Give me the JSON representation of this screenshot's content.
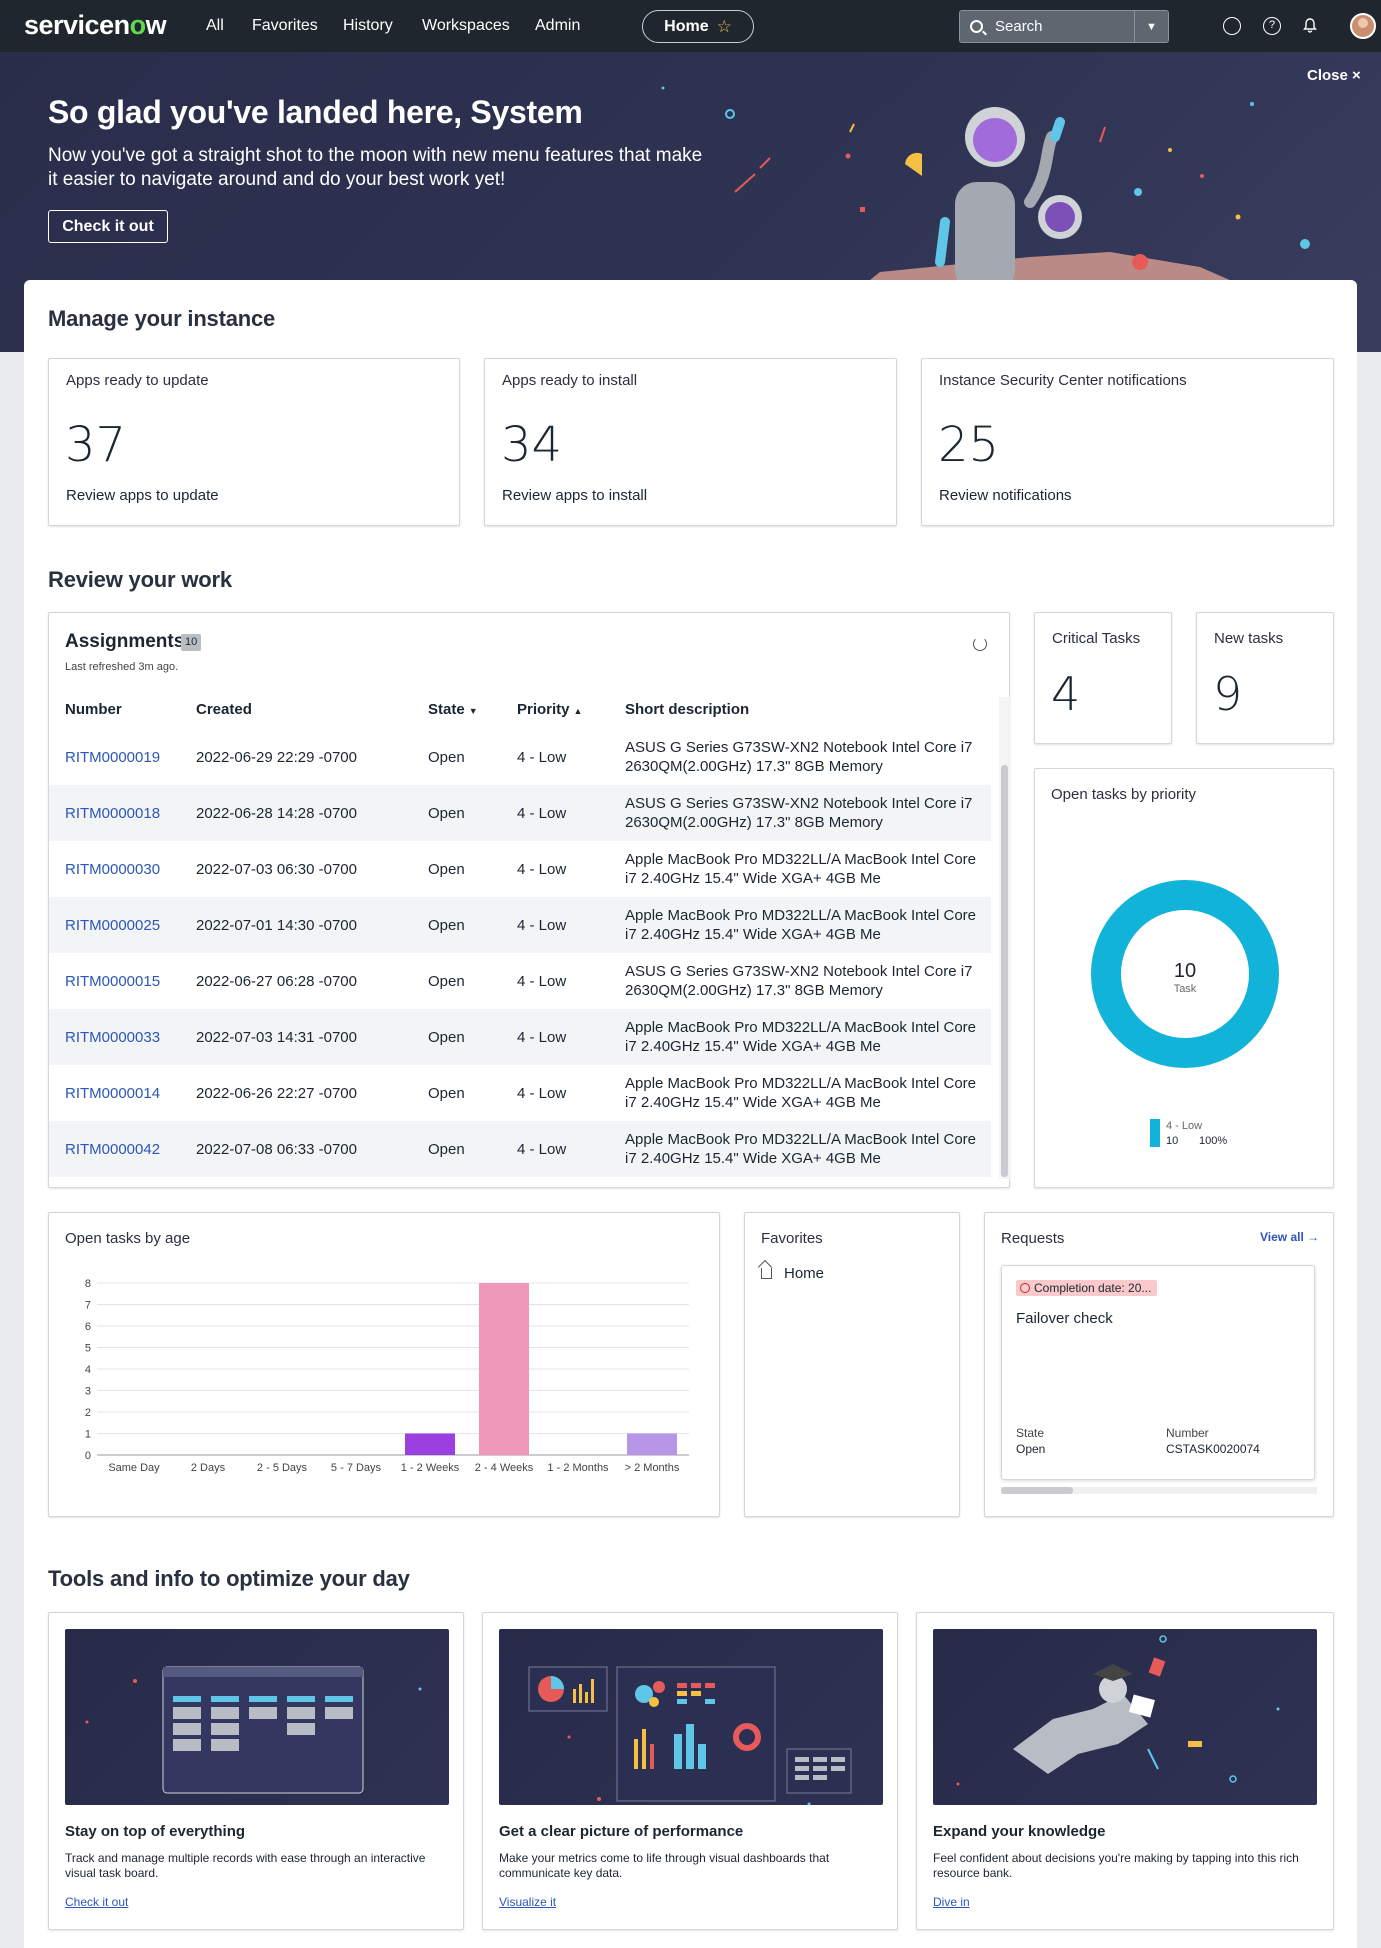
{
  "nav": {
    "logo": "servicenow",
    "links": [
      "All",
      "Favorites",
      "History",
      "Workspaces",
      "Admin"
    ],
    "home_label": "Home",
    "search_placeholder": "Search"
  },
  "banner": {
    "title": "So glad you've landed here, System",
    "text": "Now you've got a straight shot to the moon with new menu features that make it easier to navigate around and do your best work yet!",
    "button": "Check it out",
    "close": "Close ×"
  },
  "manage": {
    "heading": "Manage your instance",
    "cards": [
      {
        "title": "Apps ready to update",
        "value": "37",
        "link": "Review apps to update"
      },
      {
        "title": "Apps ready to install",
        "value": "34",
        "link": "Review apps to install"
      },
      {
        "title": "Instance Security Center notifications",
        "value": "25",
        "link": "Review notifications"
      }
    ]
  },
  "review": {
    "heading": "Review your work",
    "assignments": {
      "title": "Assignments",
      "count": "10",
      "refreshed": "Last refreshed 3m ago.",
      "columns": [
        "Number",
        "Created",
        "State",
        "Priority",
        "Short description"
      ],
      "rows": [
        {
          "number": "RITM0000019",
          "created": "2022-06-29 22:29 -0700",
          "state": "Open",
          "priority": "4 - Low",
          "desc": "ASUS G Series G73SW-XN2 Notebook Intel Core i7 2630QM(2.00GHz) 17.3\" 8GB Memory"
        },
        {
          "number": "RITM0000018",
          "created": "2022-06-28 14:28 -0700",
          "state": "Open",
          "priority": "4 - Low",
          "desc": "ASUS G Series G73SW-XN2 Notebook Intel Core i7 2630QM(2.00GHz) 17.3\" 8GB Memory"
        },
        {
          "number": "RITM0000030",
          "created": "2022-07-03 06:30 -0700",
          "state": "Open",
          "priority": "4 - Low",
          "desc": "Apple MacBook Pro MD322LL/A MacBook Intel Core i7 2.40GHz 15.4\" Wide XGA+ 4GB Me"
        },
        {
          "number": "RITM0000025",
          "created": "2022-07-01 14:30 -0700",
          "state": "Open",
          "priority": "4 - Low",
          "desc": "Apple MacBook Pro MD322LL/A MacBook Intel Core i7 2.40GHz 15.4\" Wide XGA+ 4GB Me"
        },
        {
          "number": "RITM0000015",
          "created": "2022-06-27 06:28 -0700",
          "state": "Open",
          "priority": "4 - Low",
          "desc": "ASUS G Series G73SW-XN2 Notebook Intel Core i7 2630QM(2.00GHz) 17.3\" 8GB Memory"
        },
        {
          "number": "RITM0000033",
          "created": "2022-07-03 14:31 -0700",
          "state": "Open",
          "priority": "4 - Low",
          "desc": "Apple MacBook Pro MD322LL/A MacBook Intel Core i7 2.40GHz 15.4\" Wide XGA+ 4GB Me"
        },
        {
          "number": "RITM0000014",
          "created": "2022-06-26 22:27 -0700",
          "state": "Open",
          "priority": "4 - Low",
          "desc": "Apple MacBook Pro MD322LL/A MacBook Intel Core i7 2.40GHz 15.4\" Wide XGA+ 4GB Me"
        },
        {
          "number": "RITM0000042",
          "created": "2022-07-08 06:33 -0700",
          "state": "Open",
          "priority": "4 - Low",
          "desc": "Apple MacBook Pro MD322LL/A MacBook Intel Core i7 2.40GHz 15.4\" Wide XGA+ 4GB Me"
        }
      ]
    },
    "critical": {
      "title": "Critical Tasks",
      "value": "4"
    },
    "newtasks": {
      "title": "New tasks",
      "value": "9"
    },
    "openprio": {
      "title": "Open tasks by priority",
      "center_value": "10",
      "center_label": "Task",
      "legend_label": "4 - Low",
      "legend_value": "10",
      "legend_pct": "100%",
      "color": "#12b3d8"
    },
    "age": {
      "title": "Open tasks by age"
    },
    "favorites": {
      "title": "Favorites",
      "item": "Home"
    },
    "requests": {
      "title": "Requests",
      "view_all": "View all →",
      "card": {
        "due": "Completion date: 20...",
        "title": "Failover check",
        "state_label": "State",
        "state": "Open",
        "number_label": "Number",
        "number": "CSTASK0020074"
      }
    }
  },
  "chart_data": {
    "type": "bar",
    "title": "Open tasks by age",
    "categories": [
      "Same Day",
      "2 Days",
      "2 - 5 Days",
      "5 - 7 Days",
      "1 - 2 Weeks",
      "2 - 4 Weeks",
      "1 - 2 Months",
      "> 2 Months"
    ],
    "values": [
      0,
      0,
      0,
      0,
      1,
      8,
      0,
      1
    ],
    "colors": [
      "#c96ad1",
      "#c96ad1",
      "#c96ad1",
      "#c96ad1",
      "#9b3fe0",
      "#ef97b6",
      "#c96ad1",
      "#b796e8"
    ],
    "ylim": [
      0,
      8
    ],
    "yticks": [
      "0",
      "1",
      "2",
      "3",
      "4",
      "5",
      "6",
      "7",
      "8"
    ],
    "grid": true
  },
  "tools": {
    "heading": "Tools and info to optimize your day",
    "cards": [
      {
        "title": "Stay on top of everything",
        "desc": "Track and manage multiple records with ease through an interactive visual task board.",
        "link": "Check it out"
      },
      {
        "title": "Get a clear picture of performance",
        "desc": "Make your metrics come to life through visual dashboards that communicate key data.",
        "link": "Visualize it"
      },
      {
        "title": "Expand your knowledge",
        "desc": "Feel confident about decisions you're making by tapping into this rich resource bank.",
        "link": "Dive in"
      }
    ]
  },
  "icons": {
    "globe": "globe-icon",
    "help": "help-icon",
    "bell": "bell-icon",
    "refresh": "refresh-icon",
    "home": "home-icon",
    "clock": "clock-icon"
  }
}
